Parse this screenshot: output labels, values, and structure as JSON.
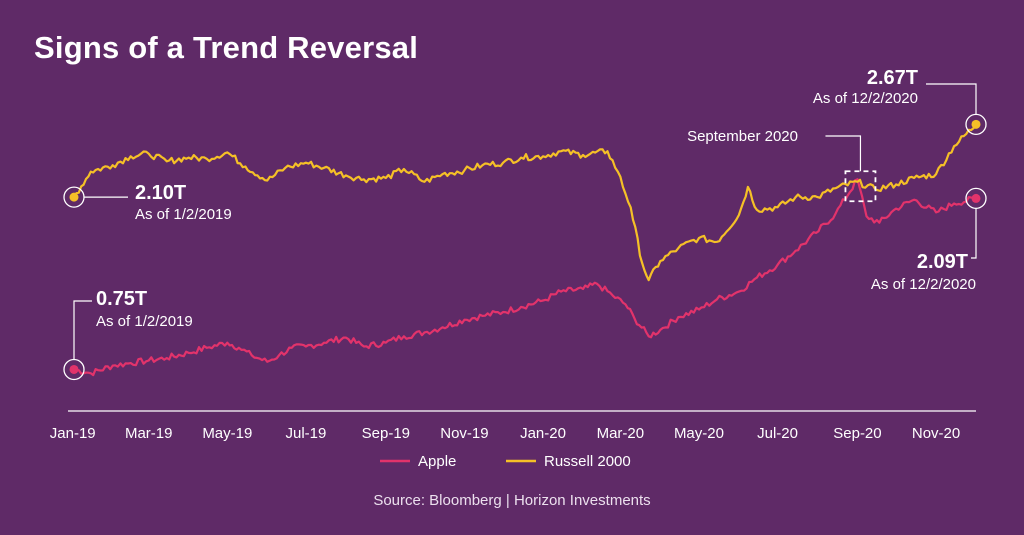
{
  "title": "Signs of a Trend Reversal",
  "source": "Source: Bloomberg | Horizon Investments",
  "colors": {
    "background": "#5f2a67",
    "apple": "#e2336b",
    "russell": "#f5c027",
    "axis": "#ffffff"
  },
  "chart_data": {
    "type": "line",
    "title": "Signs of a Trend Reversal",
    "x_ticks": [
      "Jan-19",
      "Mar-19",
      "May-19",
      "Jul-19",
      "Sep-19",
      "Nov-19",
      "Jan-20",
      "Mar-20",
      "May-20",
      "Jul-20",
      "Sep-20",
      "Nov-20"
    ],
    "xlim": [
      "2019-01-02",
      "2020-12-02"
    ],
    "ylim": [
      0.55,
      2.9
    ],
    "grid": false,
    "legend_position": "bottom-center",
    "series": [
      {
        "name": "Apple",
        "color": "#e2336b",
        "unit": "T",
        "points": [
          [
            "2019-01-02",
            0.75
          ],
          [
            "2019-01-15",
            0.72
          ],
          [
            "2019-02-01",
            0.78
          ],
          [
            "2019-02-15",
            0.8
          ],
          [
            "2019-03-01",
            0.82
          ],
          [
            "2019-03-15",
            0.84
          ],
          [
            "2019-04-01",
            0.88
          ],
          [
            "2019-04-15",
            0.92
          ],
          [
            "2019-05-01",
            0.96
          ],
          [
            "2019-05-10",
            0.92
          ],
          [
            "2019-05-20",
            0.86
          ],
          [
            "2019-06-01",
            0.81
          ],
          [
            "2019-06-10",
            0.86
          ],
          [
            "2019-06-20",
            0.92
          ],
          [
            "2019-07-01",
            0.93
          ],
          [
            "2019-07-15",
            0.96
          ],
          [
            "2019-08-01",
            1.0
          ],
          [
            "2019-08-15",
            0.93
          ],
          [
            "2019-09-01",
            0.96
          ],
          [
            "2019-09-15",
            1.01
          ],
          [
            "2019-10-01",
            1.04
          ],
          [
            "2019-10-15",
            1.08
          ],
          [
            "2019-11-01",
            1.14
          ],
          [
            "2019-11-15",
            1.17
          ],
          [
            "2019-12-01",
            1.2
          ],
          [
            "2019-12-15",
            1.24
          ],
          [
            "2020-01-01",
            1.29
          ],
          [
            "2020-01-15",
            1.36
          ],
          [
            "2020-02-01",
            1.38
          ],
          [
            "2020-02-12",
            1.42
          ],
          [
            "2020-02-24",
            1.33
          ],
          [
            "2020-03-05",
            1.26
          ],
          [
            "2020-03-12",
            1.15
          ],
          [
            "2020-03-23",
            1.01
          ],
          [
            "2020-04-01",
            1.06
          ],
          [
            "2020-04-15",
            1.16
          ],
          [
            "2020-05-01",
            1.22
          ],
          [
            "2020-05-15",
            1.3
          ],
          [
            "2020-06-01",
            1.36
          ],
          [
            "2020-06-15",
            1.47
          ],
          [
            "2020-07-01",
            1.57
          ],
          [
            "2020-07-15",
            1.68
          ],
          [
            "2020-07-31",
            1.82
          ],
          [
            "2020-08-15",
            1.97
          ],
          [
            "2020-09-01",
            2.24
          ],
          [
            "2020-09-08",
            1.95
          ],
          [
            "2020-09-18",
            1.9
          ],
          [
            "2020-10-01",
            2.01
          ],
          [
            "2020-10-15",
            2.08
          ],
          [
            "2020-11-01",
            1.98
          ],
          [
            "2020-11-15",
            2.05
          ],
          [
            "2020-12-02",
            2.09
          ]
        ]
      },
      {
        "name": "Russell 2000",
        "color": "#f5c027",
        "unit": "T",
        "points": [
          [
            "2019-01-02",
            2.1
          ],
          [
            "2019-01-15",
            2.3
          ],
          [
            "2019-02-01",
            2.35
          ],
          [
            "2019-02-15",
            2.42
          ],
          [
            "2019-03-01",
            2.44
          ],
          [
            "2019-03-15",
            2.38
          ],
          [
            "2019-04-01",
            2.41
          ],
          [
            "2019-04-15",
            2.4
          ],
          [
            "2019-05-01",
            2.45
          ],
          [
            "2019-05-15",
            2.34
          ],
          [
            "2019-06-01",
            2.23
          ],
          [
            "2019-06-15",
            2.33
          ],
          [
            "2019-07-01",
            2.37
          ],
          [
            "2019-07-15",
            2.33
          ],
          [
            "2019-08-01",
            2.27
          ],
          [
            "2019-08-15",
            2.24
          ],
          [
            "2019-09-01",
            2.25
          ],
          [
            "2019-09-15",
            2.32
          ],
          [
            "2019-10-01",
            2.22
          ],
          [
            "2019-10-15",
            2.28
          ],
          [
            "2019-11-01",
            2.31
          ],
          [
            "2019-11-15",
            2.35
          ],
          [
            "2019-12-01",
            2.37
          ],
          [
            "2019-12-15",
            2.41
          ],
          [
            "2020-01-01",
            2.42
          ],
          [
            "2020-01-15",
            2.46
          ],
          [
            "2020-02-01",
            2.43
          ],
          [
            "2020-02-20",
            2.46
          ],
          [
            "2020-02-28",
            2.3
          ],
          [
            "2020-03-09",
            2.02
          ],
          [
            "2020-03-18",
            1.58
          ],
          [
            "2020-03-23",
            1.45
          ],
          [
            "2020-04-01",
            1.6
          ],
          [
            "2020-04-15",
            1.7
          ],
          [
            "2020-05-01",
            1.78
          ],
          [
            "2020-05-15",
            1.75
          ],
          [
            "2020-06-01",
            1.96
          ],
          [
            "2020-06-08",
            2.18
          ],
          [
            "2020-06-15",
            2.0
          ],
          [
            "2020-07-01",
            2.02
          ],
          [
            "2020-07-15",
            2.1
          ],
          [
            "2020-08-01",
            2.1
          ],
          [
            "2020-08-15",
            2.17
          ],
          [
            "2020-09-01",
            2.22
          ],
          [
            "2020-09-15",
            2.16
          ],
          [
            "2020-10-01",
            2.2
          ],
          [
            "2020-10-15",
            2.25
          ],
          [
            "2020-11-01",
            2.28
          ],
          [
            "2020-11-15",
            2.5
          ],
          [
            "2020-12-02",
            2.67
          ]
        ]
      }
    ],
    "annotations": [
      {
        "series": "Russell 2000",
        "date": "2019-01-02",
        "value_label": "2.10T",
        "note": "As of 1/2/2019"
      },
      {
        "series": "Apple",
        "date": "2019-01-02",
        "value_label": "0.75T",
        "note": "As of 1/2/2019"
      },
      {
        "series": "Russell 2000",
        "date": "2020-12-02",
        "value_label": "2.67T",
        "note": "As of 12/2/2020"
      },
      {
        "series": "Apple",
        "date": "2020-12-02",
        "value_label": "2.09T",
        "note": "As of 12/2/2020"
      },
      {
        "series": "Apple",
        "date": "2020-09-01",
        "value_label": "",
        "note": "September 2020"
      }
    ]
  }
}
